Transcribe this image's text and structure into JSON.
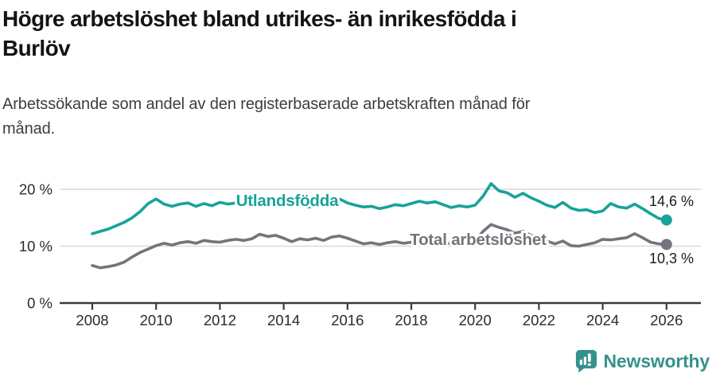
{
  "header": {
    "title_lines": [
      "Högre arbetslöshet bland utrikes- än inrikesfödda i",
      "Burlöv"
    ],
    "subtitle_lines": [
      "Arbetssökande som andel av den registerbaserade arbetskraften månad för",
      "månad."
    ]
  },
  "chart_data": {
    "type": "line",
    "title": "Högre arbetslöshet bland utrikes- än inrikesfödda i Burlöv",
    "subtitle": "Arbetssökande som andel av den registerbaserade arbetskraften månad för månad.",
    "unit": "%",
    "x_start": 2008.0,
    "x_step": 0.25,
    "xlim": [
      2007.9,
      2026.2
    ],
    "ylim": [
      0,
      22.5
    ],
    "grid": "horizontal",
    "x_tick_labels": [
      "2008",
      "2010",
      "2012",
      "2014",
      "2016",
      "2018",
      "2020",
      "2022",
      "2024",
      "2026"
    ],
    "x_tick_years": [
      2008,
      2010,
      2012,
      2014,
      2016,
      2018,
      2020,
      2022,
      2024,
      2026
    ],
    "y_tick_labels": [
      "0 %",
      "10 %",
      "20 %"
    ],
    "y_tick_values": [
      0,
      10,
      20
    ],
    "series": [
      {
        "name": "Utlandsfödda",
        "color": "#17a398",
        "end_label": "14,6 %",
        "end_value": 14.6,
        "values": [
          12.2,
          12.6,
          13.0,
          13.6,
          14.2,
          15.0,
          16.1,
          17.5,
          18.3,
          17.4,
          17.0,
          17.4,
          17.6,
          17.0,
          17.5,
          17.1,
          17.7,
          17.4,
          17.6,
          17.3,
          17.5,
          18.0,
          17.6,
          17.4,
          17.2,
          17.5,
          17.1,
          16.9,
          17.0,
          17.4,
          17.7,
          18.3,
          17.6,
          17.2,
          16.9,
          17.0,
          16.6,
          16.9,
          17.3,
          17.1,
          17.5,
          17.9,
          17.6,
          17.8,
          17.3,
          16.8,
          17.1,
          16.9,
          17.2,
          18.8,
          21.0,
          19.7,
          19.4,
          18.6,
          19.3,
          18.5,
          17.9,
          17.2,
          16.8,
          17.7,
          16.7,
          16.3,
          16.4,
          15.9,
          16.2,
          17.5,
          16.9,
          16.7,
          17.4,
          16.6,
          15.7,
          14.9,
          14.6
        ]
      },
      {
        "name": "Total arbetslöshet",
        "color": "#74747c",
        "end_label": "10,3 %",
        "end_value": 10.3,
        "values": [
          6.6,
          6.2,
          6.4,
          6.7,
          7.2,
          8.1,
          8.9,
          9.5,
          10.1,
          10.5,
          10.2,
          10.6,
          10.8,
          10.5,
          11.0,
          10.8,
          10.7,
          11.0,
          11.2,
          11.0,
          11.3,
          12.1,
          11.7,
          11.9,
          11.4,
          10.8,
          11.3,
          11.1,
          11.4,
          11.0,
          11.6,
          11.8,
          11.4,
          10.9,
          10.4,
          10.6,
          10.3,
          10.6,
          10.8,
          10.5,
          10.7,
          11.0,
          10.8,
          11.0,
          10.7,
          10.4,
          10.7,
          10.9,
          11.0,
          12.6,
          13.8,
          13.3,
          12.9,
          12.3,
          12.6,
          11.9,
          11.4,
          10.9,
          10.4,
          10.9,
          10.1,
          10.0,
          10.3,
          10.6,
          11.2,
          11.1,
          11.3,
          11.5,
          12.2,
          11.5,
          10.7,
          10.4,
          10.3
        ]
      }
    ]
  },
  "footer": {
    "brand": "Newsworthy"
  },
  "colors": {
    "accent_teal": "#17a398",
    "series_gray": "#74747c",
    "logo_teal": "#35928b",
    "grid": "#d9d9d9",
    "axis": "#3a3a3a",
    "text": "#1a1a1a"
  }
}
